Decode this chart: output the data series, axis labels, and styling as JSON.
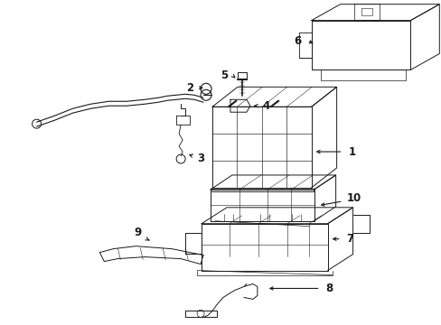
{
  "background_color": "#ffffff",
  "line_color": "#1a1a1a",
  "fig_width": 4.89,
  "fig_height": 3.6,
  "dpi": 100,
  "label_fontsize": 8.5,
  "lw": 0.7
}
